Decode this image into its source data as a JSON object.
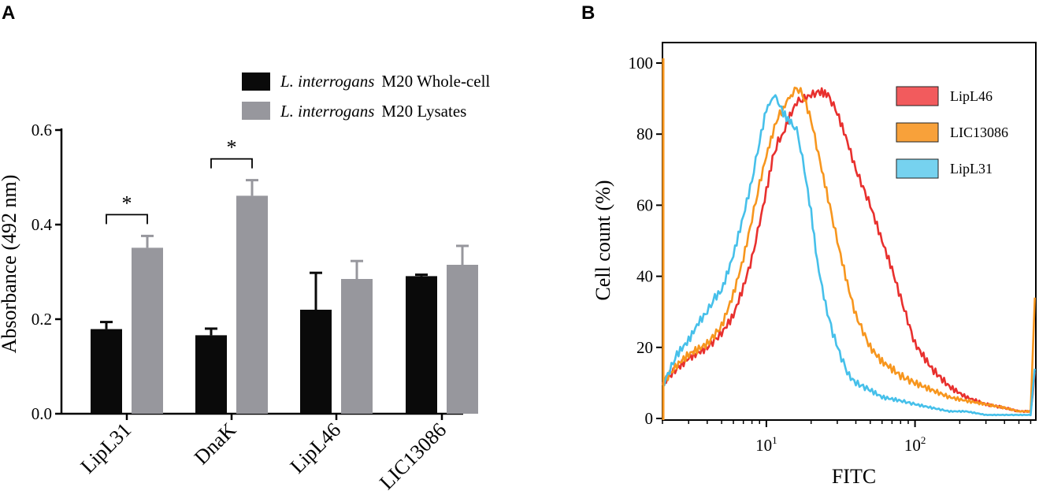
{
  "panel_a_letter": "A",
  "panel_b_letter": "B",
  "chart_data": [
    {
      "id": "A",
      "type": "bar",
      "title": "",
      "xlabel": "",
      "ylabel": "Absorbance (492 nm)",
      "ylim": [
        0,
        0.6
      ],
      "yticks": [
        "0.0",
        "0.2",
        "0.4",
        "0.6"
      ],
      "ytick_values": [
        0,
        0.2,
        0.4,
        0.6
      ],
      "categories": [
        "LipL31",
        "DnaK",
        "LipL46",
        "LIC13086"
      ],
      "series": [
        {
          "name_italic": "L. interrogans",
          "name_rest": "M20 Whole-cell",
          "color": "#0a0a0a",
          "values": [
            0.179,
            0.166,
            0.22,
            0.291
          ],
          "errors": [
            0.015,
            0.014,
            0.078,
            0.003
          ]
        },
        {
          "name_italic": "L. interrogans",
          "name_rest": "M20 Lysates",
          "color": "#97979d",
          "values": [
            0.351,
            0.461,
            0.285,
            0.315
          ],
          "errors": [
            0.025,
            0.033,
            0.038,
            0.04
          ]
        }
      ],
      "significance": [
        {
          "category": "LipL31",
          "label": "*"
        },
        {
          "category": "DnaK",
          "label": "*"
        }
      ],
      "legend_position": "top-right"
    },
    {
      "id": "B",
      "type": "line",
      "title": "",
      "xlabel": "FITC",
      "ylabel": "Cell count (%)",
      "xscale": "log",
      "xlim": [
        2,
        650
      ],
      "ylim": [
        0,
        100
      ],
      "yticks": [
        "0",
        "20",
        "40",
        "60",
        "80",
        "100"
      ],
      "ytick_values": [
        0,
        20,
        40,
        60,
        80,
        100
      ],
      "xticks": [
        {
          "value": 10,
          "base": "10",
          "exp": "1"
        },
        {
          "value": 100,
          "base": "10",
          "exp": "2"
        }
      ],
      "series": [
        {
          "name": "LipL46",
          "color": "#e8302e",
          "legend_fill": "#f25b5d",
          "x": [
            2,
            2.5,
            3,
            4,
            5,
            6,
            7,
            8,
            9,
            10,
            11,
            12,
            13,
            14,
            16,
            18,
            20,
            23,
            26,
            30,
            35,
            40,
            50,
            60,
            70,
            80,
            100,
            130,
            170,
            220,
            300,
            400,
            500,
            600,
            640
          ],
          "y": [
            10,
            14,
            17,
            20,
            24,
            29,
            37,
            45,
            55,
            64,
            73,
            78,
            80,
            84,
            89,
            90,
            91,
            92,
            91,
            86,
            78,
            70,
            60,
            50,
            42,
            34,
            21,
            14,
            9,
            6,
            4,
            3,
            2,
            2,
            13
          ]
        },
        {
          "name": "LIC13086",
          "color": "#f7961e",
          "legend_fill": "#f8a13a",
          "x": [
            2,
            2.5,
            3,
            4,
            5,
            6,
            7,
            8,
            9,
            10,
            11,
            12,
            13,
            14,
            15,
            16,
            17,
            18,
            20,
            23,
            26,
            30,
            35,
            40,
            50,
            60,
            70,
            80,
            100,
            130,
            170,
            220,
            300,
            400,
            500,
            600,
            640
          ],
          "y": [
            10,
            15,
            18,
            21,
            26,
            35,
            45,
            56,
            66,
            74,
            80,
            85,
            87,
            90,
            91,
            93,
            92,
            90,
            84,
            72,
            62,
            50,
            38,
            29,
            20,
            16,
            14,
            12,
            10,
            8,
            6,
            5,
            4,
            3,
            2,
            2,
            34
          ]
        },
        {
          "name": "LipL31",
          "color": "#46c0ea",
          "legend_fill": "#76d2ef",
          "x": [
            2,
            2.5,
            3,
            3.5,
            4,
            4.5,
            5,
            6,
            7,
            8,
            9,
            10,
            11,
            11.5,
            12,
            13,
            14,
            15,
            16,
            17,
            18,
            20,
            22,
            25,
            28,
            32,
            36,
            40,
            50,
            60,
            80,
            100,
            130,
            170,
            220,
            300,
            400,
            500,
            600,
            640
          ],
          "y": [
            9,
            18,
            22,
            27,
            30,
            34,
            36,
            46,
            57,
            67,
            78,
            87,
            90,
            91,
            89,
            86,
            84,
            83,
            81,
            76,
            70,
            58,
            44,
            32,
            24,
            17,
            12,
            10,
            8,
            6,
            5,
            4,
            3,
            2,
            2,
            1,
            1,
            1,
            1,
            14
          ]
        }
      ],
      "legend_position": "top-right"
    }
  ]
}
